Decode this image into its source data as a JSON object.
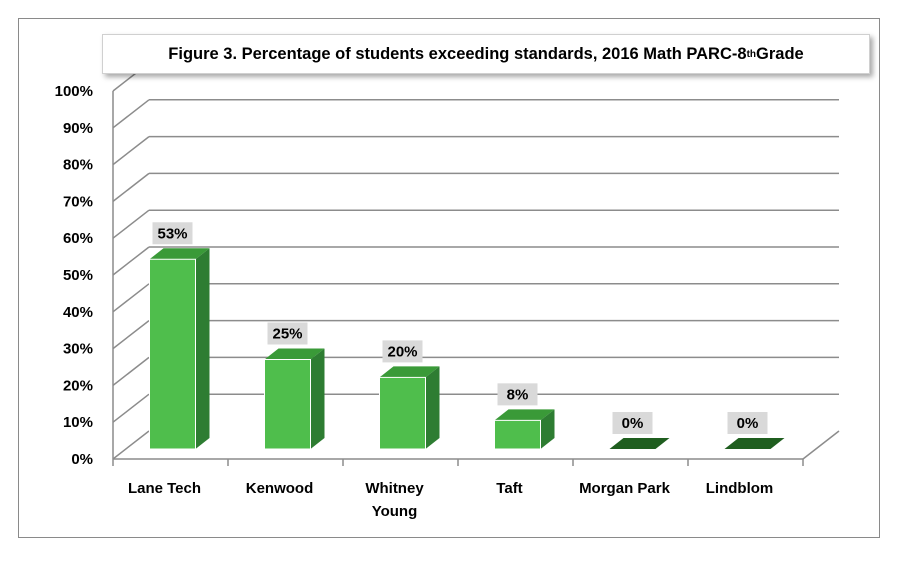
{
  "chart_data": {
    "type": "bar",
    "title_main": "Figure 3. Percentage of students exceeding standards, 2016 Math PARC-8",
    "title_sup": "th",
    "title_tail": " Grade",
    "categories": [
      [
        "Lane Tech"
      ],
      [
        "Kenwood"
      ],
      [
        "Whitney",
        "Young"
      ],
      [
        "Taft"
      ],
      [
        "Morgan Park"
      ],
      [
        "Lindblom"
      ]
    ],
    "values": [
      53,
      25,
      20,
      8,
      0,
      0
    ],
    "data_labels": [
      "53%",
      "25%",
      "20%",
      "8%",
      "0%",
      "0%"
    ],
    "y_ticks": [
      "0%",
      "10%",
      "20%",
      "30%",
      "40%",
      "50%",
      "60%",
      "70%",
      "80%",
      "90%",
      "100%"
    ],
    "ylim": [
      0,
      100
    ],
    "grid": true,
    "legend": "none",
    "colors": {
      "bar_front": "#4fbe4c",
      "bar_side": "#2e7d32",
      "bar_top": "#3a9a38",
      "bar_flat": "#1f5e1f",
      "grid": "#8c8c8c",
      "label_bg": "#d9d9d9"
    }
  }
}
